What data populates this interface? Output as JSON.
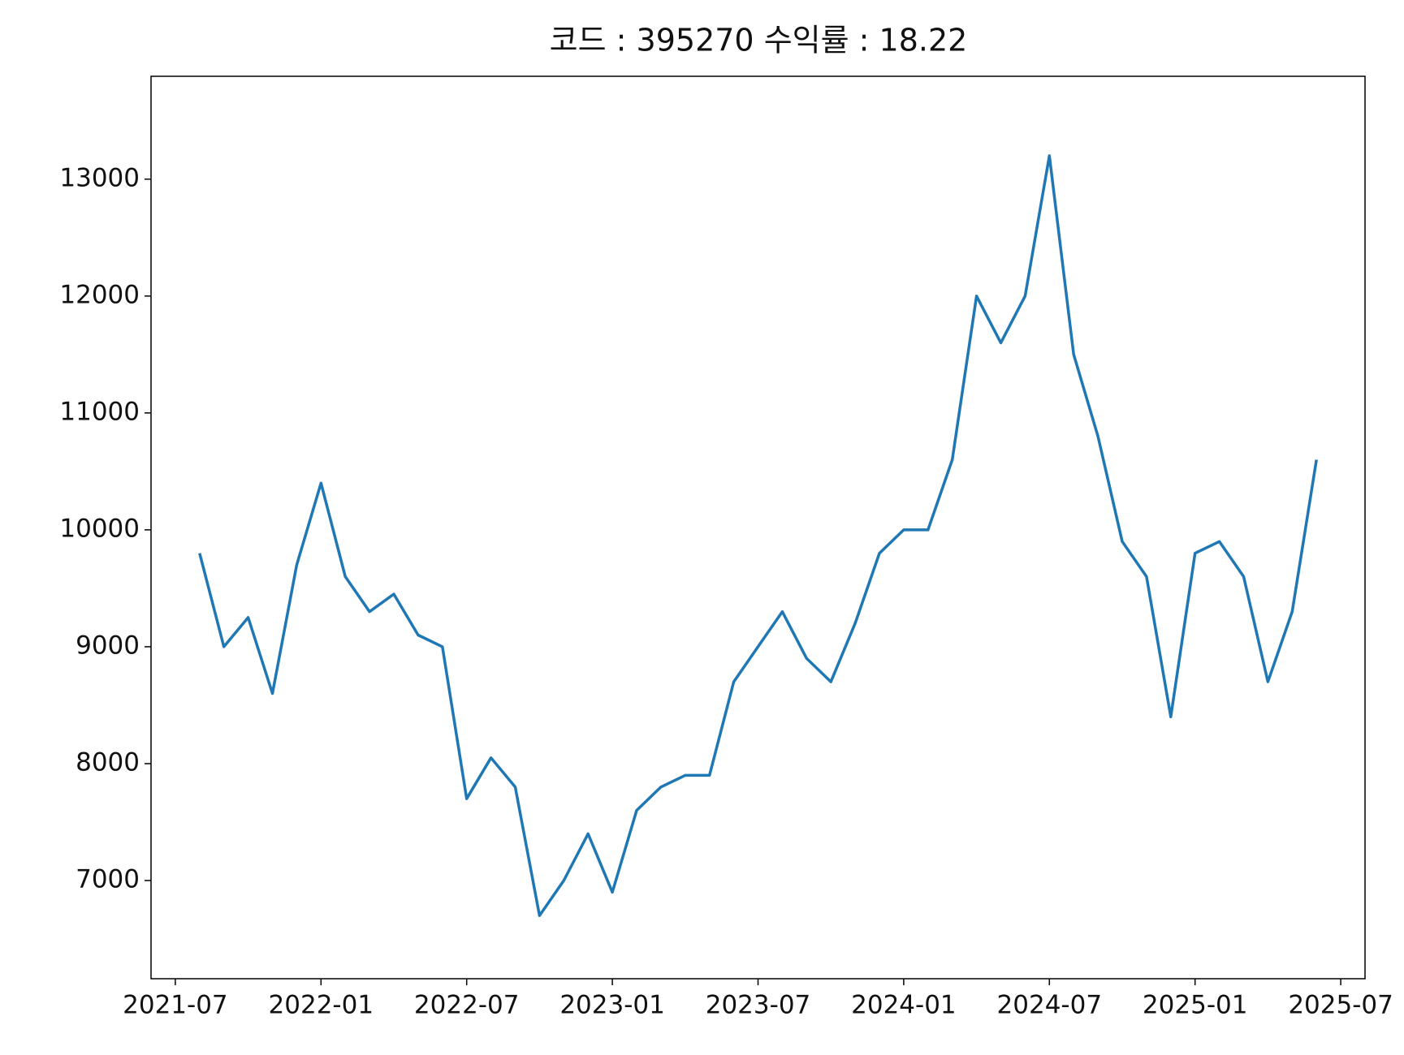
{
  "chart_data": {
    "type": "line",
    "title": "코드 : 395270 수익률 : 18.22",
    "x": [
      "2021-08",
      "2021-09",
      "2021-10",
      "2021-11",
      "2021-12",
      "2022-01",
      "2022-02",
      "2022-03",
      "2022-04",
      "2022-05",
      "2022-06",
      "2022-07",
      "2022-08",
      "2022-09",
      "2022-10",
      "2022-11",
      "2022-12",
      "2023-01",
      "2023-02",
      "2023-03",
      "2023-04",
      "2023-05",
      "2023-06",
      "2023-07",
      "2023-08",
      "2023-09",
      "2023-10",
      "2023-11",
      "2023-12",
      "2024-01",
      "2024-02",
      "2024-03",
      "2024-04",
      "2024-05",
      "2024-06",
      "2024-07",
      "2024-08",
      "2024-09",
      "2024-10",
      "2024-11",
      "2024-12",
      "2025-01",
      "2025-02",
      "2025-03",
      "2025-04",
      "2025-05",
      "2025-06"
    ],
    "values": [
      9800,
      9000,
      9250,
      8600,
      9700,
      10400,
      9600,
      9300,
      9450,
      9100,
      9000,
      7700,
      8050,
      7800,
      6700,
      7000,
      7400,
      6900,
      7600,
      7800,
      7900,
      7900,
      8700,
      9000,
      9300,
      8900,
      8700,
      9200,
      9800,
      10000,
      10000,
      10600,
      12000,
      11600,
      12000,
      13200,
      11500,
      10800,
      9900,
      9600,
      8400,
      9800,
      9900,
      9600,
      8700,
      9300,
      10600
    ],
    "color": "#1f77b4",
    "xlim": [
      "2021-06",
      "2025-08"
    ],
    "xticks": [
      "2021-07",
      "2022-01",
      "2022-07",
      "2023-01",
      "2023-07",
      "2024-01",
      "2024-07",
      "2025-01",
      "2025-07"
    ],
    "ylim": [
      6160,
      13880
    ],
    "yticks": [
      7000,
      8000,
      9000,
      10000,
      11000,
      12000,
      13000
    ],
    "grid": false
  }
}
